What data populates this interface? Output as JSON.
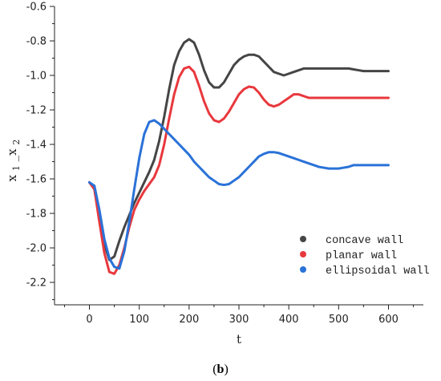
{
  "chart_data": {
    "type": "line",
    "xlabel": "t",
    "ylabel": {
      "base": "x",
      "sub1": "1",
      "sep": "_x",
      "sub2": "2"
    },
    "caption": {
      "open": "(",
      "label": "b",
      "close": ")"
    },
    "xlim": [
      -70,
      670
    ],
    "ylim": [
      -2.33,
      -0.6
    ],
    "x_ticks": [
      "0",
      "100",
      "200",
      "300",
      "400",
      "500",
      "600"
    ],
    "y_ticks": [
      "-0.6",
      "-0.8",
      "-1.0",
      "-1.2",
      "-1.4",
      "-1.6",
      "-1.8",
      "-2.0",
      "-2.2"
    ],
    "legend_position": "bottom-right",
    "grid": false,
    "series": [
      {
        "name": "concave wall",
        "color": "#454545",
        "x": [
          0,
          10,
          20,
          30,
          40,
          50,
          60,
          70,
          80,
          90,
          100,
          110,
          120,
          130,
          140,
          150,
          160,
          170,
          180,
          190,
          200,
          210,
          220,
          230,
          240,
          250,
          260,
          270,
          280,
          290,
          300,
          310,
          320,
          330,
          340,
          350,
          360,
          370,
          380,
          390,
          400,
          410,
          420,
          430,
          440,
          450,
          460,
          470,
          480,
          490,
          500,
          510,
          520,
          530,
          540,
          550,
          560,
          570,
          580,
          590,
          600
        ],
        "values": [
          -1.62,
          -1.66,
          -1.82,
          -1.98,
          -2.07,
          -2.05,
          -1.96,
          -1.88,
          -1.81,
          -1.74,
          -1.68,
          -1.62,
          -1.56,
          -1.49,
          -1.38,
          -1.24,
          -1.08,
          -0.94,
          -0.86,
          -0.81,
          -0.79,
          -0.81,
          -0.88,
          -0.97,
          -1.04,
          -1.07,
          -1.07,
          -1.04,
          -0.99,
          -0.94,
          -0.91,
          -0.89,
          -0.88,
          -0.88,
          -0.89,
          -0.92,
          -0.95,
          -0.98,
          -0.99,
          -1.0,
          -0.99,
          -0.98,
          -0.97,
          -0.96,
          -0.96,
          -0.96,
          -0.96,
          -0.96,
          -0.96,
          -0.96,
          -0.96,
          -0.96,
          -0.96,
          -0.965,
          -0.97,
          -0.975,
          -0.975,
          -0.975,
          -0.975,
          -0.975,
          -0.975
        ]
      },
      {
        "name": "planar wall",
        "color": "#e8383d",
        "x": [
          0,
          10,
          20,
          30,
          40,
          50,
          60,
          70,
          80,
          90,
          100,
          110,
          120,
          130,
          140,
          150,
          160,
          170,
          180,
          190,
          200,
          210,
          220,
          230,
          240,
          250,
          260,
          270,
          280,
          290,
          300,
          310,
          320,
          330,
          340,
          350,
          360,
          370,
          380,
          390,
          400,
          410,
          420,
          430,
          440,
          450,
          460,
          470,
          480,
          490,
          500,
          510,
          520,
          530,
          540,
          550,
          560,
          570,
          580,
          590,
          600
        ],
        "values": [
          -1.62,
          -1.66,
          -1.85,
          -2.03,
          -2.14,
          -2.15,
          -2.1,
          -2.0,
          -1.88,
          -1.78,
          -1.72,
          -1.67,
          -1.63,
          -1.59,
          -1.52,
          -1.4,
          -1.25,
          -1.11,
          -1.01,
          -0.96,
          -0.95,
          -0.98,
          -1.06,
          -1.15,
          -1.22,
          -1.26,
          -1.27,
          -1.25,
          -1.21,
          -1.16,
          -1.11,
          -1.08,
          -1.065,
          -1.07,
          -1.1,
          -1.14,
          -1.17,
          -1.18,
          -1.17,
          -1.15,
          -1.13,
          -1.11,
          -1.11,
          -1.12,
          -1.13,
          -1.13,
          -1.13,
          -1.13,
          -1.13,
          -1.13,
          -1.13,
          -1.13,
          -1.13,
          -1.13,
          -1.13,
          -1.13,
          -1.13,
          -1.13,
          -1.13,
          -1.13,
          -1.13
        ]
      },
      {
        "name": "ellipsoidal wall",
        "color": "#2a72d8",
        "x": [
          0,
          10,
          20,
          30,
          40,
          50,
          60,
          70,
          80,
          90,
          100,
          110,
          120,
          130,
          140,
          150,
          160,
          170,
          180,
          190,
          200,
          210,
          220,
          230,
          240,
          250,
          260,
          270,
          280,
          290,
          300,
          310,
          320,
          330,
          340,
          350,
          360,
          370,
          380,
          390,
          400,
          410,
          420,
          430,
          440,
          450,
          460,
          470,
          480,
          490,
          500,
          510,
          520,
          530,
          540,
          550,
          560,
          570,
          580,
          590,
          600
        ],
        "values": [
          -1.62,
          -1.64,
          -1.78,
          -1.95,
          -2.06,
          -2.11,
          -2.12,
          -2.02,
          -1.85,
          -1.66,
          -1.48,
          -1.34,
          -1.27,
          -1.26,
          -1.28,
          -1.31,
          -1.34,
          -1.37,
          -1.4,
          -1.43,
          -1.46,
          -1.5,
          -1.53,
          -1.56,
          -1.59,
          -1.61,
          -1.63,
          -1.635,
          -1.63,
          -1.61,
          -1.59,
          -1.56,
          -1.53,
          -1.5,
          -1.47,
          -1.455,
          -1.445,
          -1.445,
          -1.45,
          -1.46,
          -1.47,
          -1.48,
          -1.49,
          -1.5,
          -1.51,
          -1.52,
          -1.53,
          -1.535,
          -1.54,
          -1.54,
          -1.54,
          -1.535,
          -1.53,
          -1.52,
          -1.52,
          -1.52,
          -1.52,
          -1.52,
          -1.52,
          -1.52,
          -1.52
        ]
      }
    ]
  }
}
